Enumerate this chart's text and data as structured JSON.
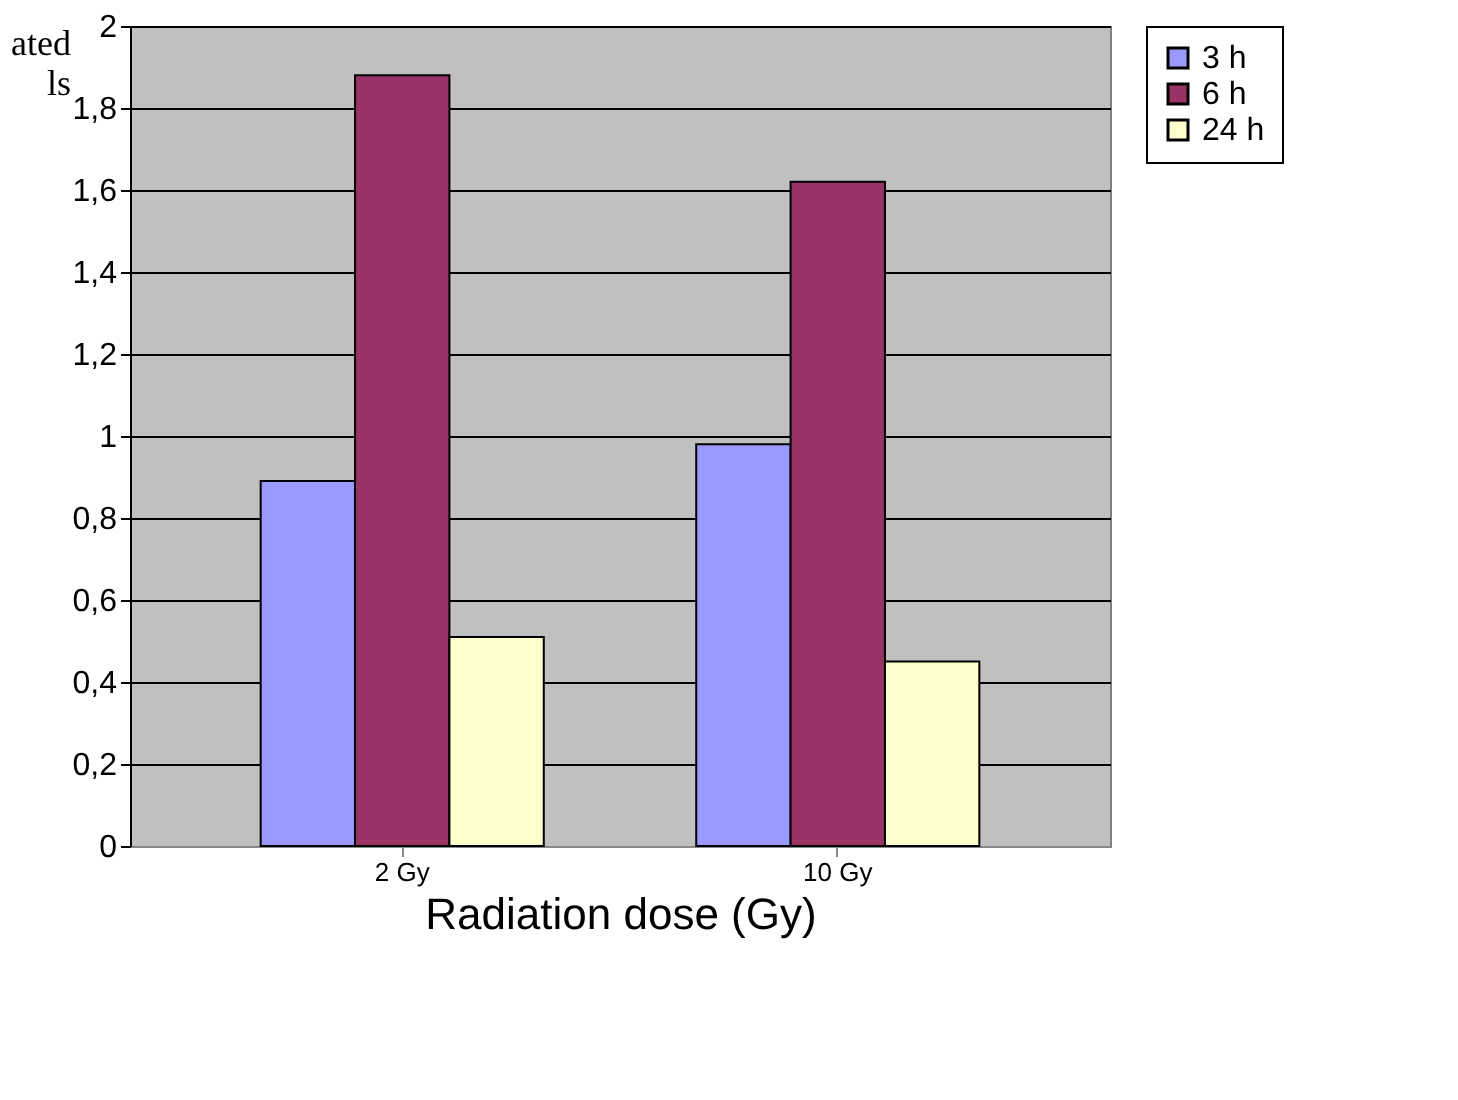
{
  "chart_data": {
    "type": "bar",
    "xlabel": "Radiation dose (Gy)",
    "ylabel": "ated\nls",
    "categories": [
      "2 Gy",
      "10 Gy"
    ],
    "series": [
      {
        "name": "3 h",
        "color": "#9999ff",
        "values": [
          0.89,
          0.98
        ]
      },
      {
        "name": "6 h",
        "color": "#993366",
        "values": [
          1.88,
          1.62
        ]
      },
      {
        "name": "24 h",
        "color": "#ffffcc",
        "values": [
          0.51,
          0.45
        ]
      }
    ],
    "ylim": [
      0,
      2
    ],
    "yticks": [
      0,
      {
        "value": 0.2,
        "label": "0,2"
      },
      {
        "value": 0.4,
        "label": "0,4"
      },
      {
        "value": 0.6,
        "label": "0,6"
      },
      {
        "value": 0.8,
        "label": "0,8"
      },
      1,
      {
        "value": 1.2,
        "label": "1,2"
      },
      {
        "value": 1.4,
        "label": "1,4"
      },
      {
        "value": 1.6,
        "label": "1,6"
      },
      {
        "value": 1.8,
        "label": "1,8"
      },
      2
    ],
    "grid": "y",
    "legend": "right"
  }
}
